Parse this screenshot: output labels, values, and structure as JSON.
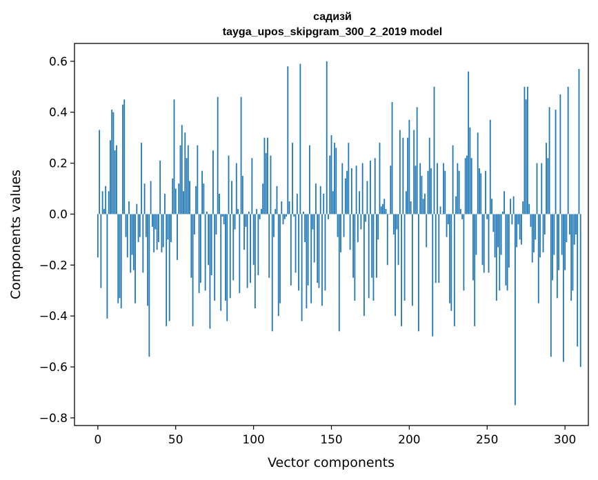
{
  "chart_data": {
    "type": "bar",
    "title": "садизй",
    "subtitle": "tayga_upos_skipgram_300_2_2019 model",
    "xlabel": "Vector components",
    "ylabel": "Components values",
    "xlim": [
      -15,
      315
    ],
    "ylim": [
      -0.83,
      0.67
    ],
    "xticks": [
      0,
      50,
      100,
      150,
      200,
      250,
      300
    ],
    "xtick_labels": [
      "0",
      "50",
      "100",
      "150",
      "200",
      "250",
      "300"
    ],
    "yticks": [
      -0.8,
      -0.6,
      -0.4,
      -0.2,
      0.0,
      0.2,
      0.4,
      0.6
    ],
    "ytick_labels": [
      "−0.8",
      "−0.6",
      "−0.4",
      "−0.2",
      "0.0",
      "0.2",
      "0.4",
      "0.6"
    ],
    "grid": false,
    "bar_color": "#1f77b4",
    "series": [
      {
        "values": [
          -0.17,
          0.33,
          -0.29,
          0.09,
          0.02,
          0.11,
          -0.41,
          0.09,
          0.29,
          0.41,
          0.4,
          0.25,
          0.27,
          -0.35,
          -0.33,
          -0.37,
          0.43,
          0.45,
          -0.09,
          -0.17,
          0.05,
          -0.23,
          -0.16,
          -0.22,
          -0.35,
          0.04,
          -0.11,
          -0.09,
          0.28,
          -0.23,
          0.12,
          -0.09,
          -0.36,
          -0.56,
          0.13,
          -0.05,
          -0.15,
          -0.06,
          -0.14,
          -0.11,
          0.21,
          -0.15,
          -0.13,
          0.08,
          -0.44,
          -0.1,
          -0.42,
          -0.11,
          0.14,
          0.45,
          0.1,
          -0.18,
          0.12,
          0.27,
          0.35,
          0.09,
          0.32,
          0.22,
          0.27,
          0.13,
          -0.25,
          -0.44,
          -0.08,
          0.11,
          0.27,
          -0.31,
          -0.27,
          0.17,
          0.12,
          -0.3,
          0.01,
          -0.2,
          -0.45,
          -0.24,
          0.25,
          -0.34,
          -0.08,
          0.46,
          0.08,
          -0.38,
          -0.01,
          -0.04,
          -0.34,
          -0.42,
          0.23,
          -0.33,
          0.13,
          -0.26,
          -0.06,
          0.2,
          0.02,
          -0.31,
          0.46,
          0.15,
          -0.14,
          -0.05,
          -0.29,
          0.01,
          -0.27,
          0.22,
          -0.2,
          -0.37,
          0.02,
          -0.24,
          -0.02,
          0.02,
          0.12,
          0.3,
          0.24,
          0.3,
          -0.25,
          0.23,
          -0.46,
          -0.09,
          0.02,
          0.11,
          -0.4,
          -0.35,
          0.05,
          -0.04,
          -0.02,
          -0.01,
          0.58,
          0.05,
          -0.28,
          0.28,
          -0.01,
          -0.23,
          0.08,
          -0.3,
          0.59,
          -0.42,
          0.01,
          -0.11,
          -0.37,
          -0.28,
          0.27,
          -0.35,
          -0.06,
          -0.19,
          0.12,
          -0.27,
          -0.29,
          0.11,
          -0.36,
          0.08,
          -0.3,
          0.6,
          -0.02,
          0.23,
          0.31,
          0.09,
          0.28,
          0.26,
          -0.09,
          -0.46,
          -0.15,
          0.2,
          -0.09,
          0.14,
          0.17,
          0.28,
          -0.14,
          0.18,
          -0.25,
          -0.34,
          0.19,
          -0.11,
          0.09,
          -0.06,
          0.2,
          -0.4,
          -0.03,
          0.13,
          -0.33,
          0.21,
          -0.25,
          -0.34,
          0.22,
          -0.25,
          -0.1,
          0.28,
          0.03,
          0.04,
          0.06,
          0.02,
          -0.2,
          0.0,
          0.19,
          0.44,
          -0.08,
          -0.4,
          -0.06,
          -0.2,
          0.33,
          -0.44,
          0.3,
          -0.34,
          0.09,
          0.3,
          0.37,
          0.05,
          -0.36,
          0.33,
          0.19,
          0.42,
          -0.46,
          0.2,
          0.15,
          0.06,
          0.08,
          -0.13,
          0.17,
          0.3,
          0.18,
          -0.48,
          0.5,
          -0.27,
          0.2,
          -0.27,
          0.03,
          0.0,
          0.2,
          0.17,
          -0.09,
          -0.04,
          -0.35,
          -0.38,
          0.27,
          -0.44,
          0.07,
          0.2,
          0.17,
          0.02,
          -0.02,
          -0.3,
          0.22,
          0.23,
          0.56,
          0.34,
          0.22,
          -0.26,
          -0.44,
          -0.16,
          0.32,
          0.18,
          0.16,
          -0.2,
          -0.23,
          0.17,
          -0.02,
          -0.23,
          0.37,
          0.06,
          -0.07,
          -0.17,
          -0.34,
          -0.13,
          -0.3,
          -0.16,
          0.01,
          0.09,
          -0.28,
          -0.3,
          -0.21,
          0.06,
          -0.04,
          0.07,
          -0.75,
          -0.13,
          -0.04,
          -0.1,
          -0.12,
          0.05,
          0.5,
          0.45,
          0.5,
          0.04,
          -0.05,
          -0.19,
          -0.15,
          -0.1,
          0.2,
          -0.35,
          -0.17,
          0.2,
          -0.15,
          -0.08,
          0.28,
          0.22,
          0.42,
          -0.56,
          -0.26,
          -0.16,
          0.41,
          -0.33,
          -0.22,
          0.47,
          -0.16,
          -0.58,
          -0.22,
          -0.11,
          0.5,
          -0.08,
          -0.34,
          -0.3,
          -0.12,
          -0.08,
          -0.52,
          0.57,
          -0.6
        ]
      }
    ]
  }
}
